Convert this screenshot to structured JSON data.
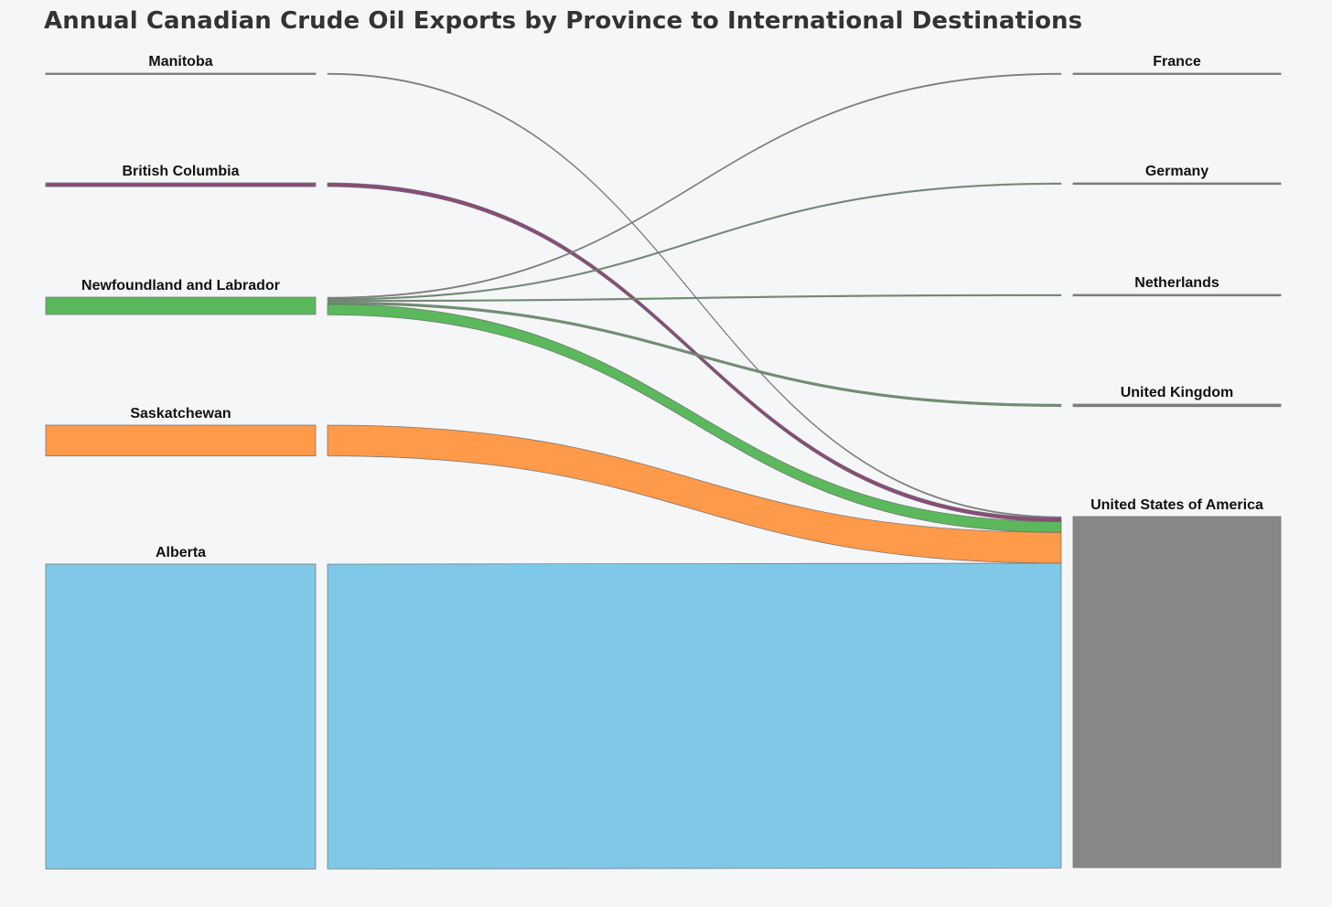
{
  "title": "Annual Canadian Crude Oil Exports by Province to International Destinations",
  "chart_data": {
    "type": "sankey",
    "sources": [
      {
        "name": "Manitoba",
        "color": "#7f7f7f"
      },
      {
        "name": "British Columbia",
        "color": "#8b4a7a"
      },
      {
        "name": "Newfoundland and Labrador",
        "color": "#5cb85c"
      },
      {
        "name": "Saskatchewan",
        "color": "#ff9a4a"
      },
      {
        "name": "Alberta",
        "color": "#80c8e8"
      }
    ],
    "targets": [
      {
        "name": "France",
        "color": "#7f7f7f"
      },
      {
        "name": "Germany",
        "color": "#7f7f7f"
      },
      {
        "name": "Netherlands",
        "color": "#7f7f7f"
      },
      {
        "name": "United Kingdom",
        "color": "#7f7f7f"
      },
      {
        "name": "United States of America",
        "color": "#878787"
      }
    ],
    "links": [
      {
        "source": "Manitoba",
        "target": "United States of America",
        "value": 0.3,
        "color": "#7f7f7f"
      },
      {
        "source": "British Columbia",
        "target": "United States of America",
        "value": 1.2,
        "color": "#8b4a7a"
      },
      {
        "source": "Newfoundland and Labrador",
        "target": "France",
        "value": 0.3,
        "color": "#7f7f7f"
      },
      {
        "source": "Newfoundland and Labrador",
        "target": "Germany",
        "value": 0.5,
        "color": "#6f8f6f"
      },
      {
        "source": "Newfoundland and Labrador",
        "target": "Netherlands",
        "value": 0.5,
        "color": "#6f8f6f"
      },
      {
        "source": "Newfoundland and Labrador",
        "target": "United Kingdom",
        "value": 0.8,
        "color": "#6f8f6f"
      },
      {
        "source": "Newfoundland and Labrador",
        "target": "United States of America",
        "value": 3.4,
        "color": "#5cb85c"
      },
      {
        "source": "Saskatchewan",
        "target": "United States of America",
        "value": 9.8,
        "color": "#ff9a4a"
      },
      {
        "source": "Alberta",
        "target": "United States of America",
        "value": 97.0,
        "color": "#80c8e8"
      }
    ]
  }
}
